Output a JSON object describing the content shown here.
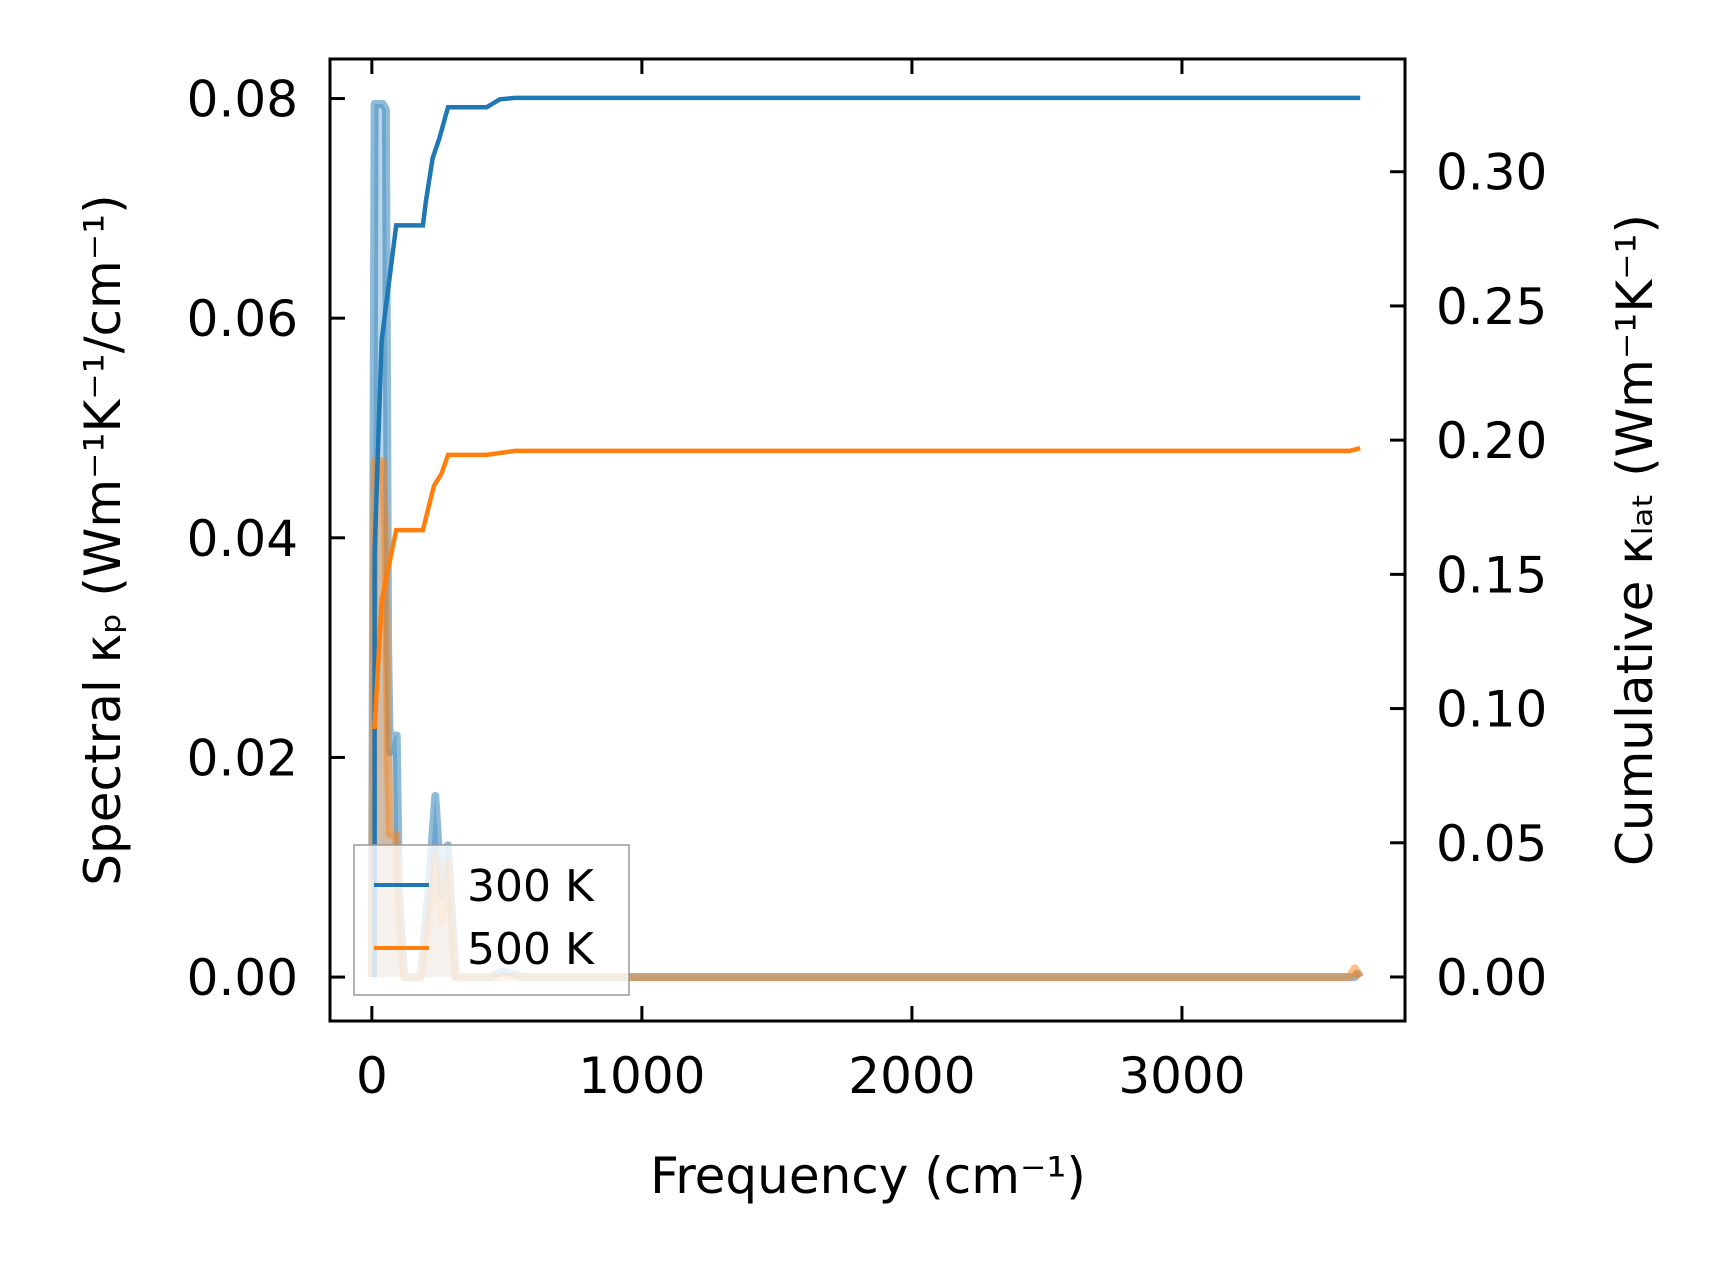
{
  "chart_data": {
    "type": "line",
    "title": "",
    "xlabel": "Frequency (cm⁻¹)",
    "ylabel_left": "Spectral κₚ (Wm⁻¹K⁻¹/cm⁻¹)",
    "ylabel_right": "Cumulative κₗₐₜ (Wm⁻¹K⁻¹)",
    "xlim": [
      -155,
      3826
    ],
    "ylim_left": [
      -0.004,
      0.0836
    ],
    "ylim_right": [
      -0.0164,
      0.342
    ],
    "xticks": [
      "0",
      "1000",
      "2000",
      "3000"
    ],
    "xtick_values": [
      0,
      1000,
      2000,
      3000
    ],
    "yticks_left": [
      "0.00",
      "0.02",
      "0.04",
      "0.06",
      "0.08"
    ],
    "ytick_left_values": [
      0,
      0.02,
      0.04,
      0.06,
      0.08
    ],
    "yticks_right": [
      "0.00",
      "0.05",
      "0.10",
      "0.15",
      "0.20",
      "0.25",
      "0.30"
    ],
    "ytick_right_values": [
      0,
      0.05,
      0.1,
      0.15,
      0.2,
      0.25,
      0.3
    ],
    "grid": false,
    "legend": {
      "placement": "lower-left",
      "entries": [
        "300 K",
        "500 K"
      ]
    },
    "series": [
      {
        "name": "300 K",
        "color": "#1f77b4",
        "spectral": [
          [
            0,
            0
          ],
          [
            10,
            0.0795
          ],
          [
            40,
            0.0795
          ],
          [
            52,
            0.079
          ],
          [
            60,
            0.03
          ],
          [
            67,
            0.0205
          ],
          [
            85,
            0.022
          ],
          [
            92,
            0.022
          ],
          [
            100,
            0.008
          ],
          [
            120,
            0
          ],
          [
            180,
            0
          ],
          [
            210,
            0.008
          ],
          [
            235,
            0.0165
          ],
          [
            258,
            0.0075
          ],
          [
            282,
            0.012
          ],
          [
            310,
            0
          ],
          [
            440,
            0
          ],
          [
            480,
            0.0005
          ],
          [
            520,
            0.0003
          ],
          [
            560,
            0
          ],
          [
            3640,
            0
          ],
          [
            3650,
            0.0003
          ],
          [
            3660,
            0
          ]
        ],
        "cumulative": [
          [
            10,
            0
          ],
          [
            10,
            0.158
          ],
          [
            36,
            0.237
          ],
          [
            90,
            0.28
          ],
          [
            189,
            0.28
          ],
          [
            200,
            0.289
          ],
          [
            225,
            0.305
          ],
          [
            250,
            0.3125
          ],
          [
            282,
            0.324
          ],
          [
            425,
            0.324
          ],
          [
            474,
            0.327
          ],
          [
            530,
            0.3275
          ],
          [
            3660,
            0.3275
          ]
        ]
      },
      {
        "name": "500 K",
        "color": "#ff7f0e",
        "spectral": [
          [
            0,
            0
          ],
          [
            10,
            0.047
          ],
          [
            40,
            0.047
          ],
          [
            50,
            0.04
          ],
          [
            60,
            0.02
          ],
          [
            67,
            0.013
          ],
          [
            90,
            0.013
          ],
          [
            100,
            0.005
          ],
          [
            120,
            0
          ],
          [
            180,
            0
          ],
          [
            210,
            0.005
          ],
          [
            235,
            0.011
          ],
          [
            258,
            0.005
          ],
          [
            282,
            0.0105
          ],
          [
            310,
            0
          ],
          [
            3620,
            0
          ],
          [
            3640,
            0.0008
          ],
          [
            3660,
            0
          ]
        ],
        "cumulative": [
          [
            10,
            0.0924
          ],
          [
            36,
            0.14
          ],
          [
            90,
            0.1665
          ],
          [
            189,
            0.1665
          ],
          [
            200,
            0.171
          ],
          [
            230,
            0.183
          ],
          [
            258,
            0.1875
          ],
          [
            282,
            0.1945
          ],
          [
            425,
            0.1945
          ],
          [
            530,
            0.196
          ],
          [
            3620,
            0.196
          ],
          [
            3660,
            0.197
          ]
        ]
      }
    ]
  }
}
